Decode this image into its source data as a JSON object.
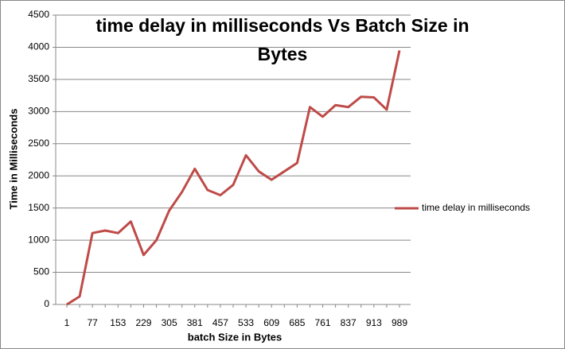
{
  "chart_data": {
    "type": "line",
    "title": "time delay in milliseconds Vs Batch Size in Bytes",
    "x_label": "batch Size in Bytes",
    "y_label": "Time in Milliseconds",
    "categories": [
      "1",
      null,
      "77",
      null,
      "153",
      null,
      "229",
      null,
      "305",
      null,
      "381",
      null,
      "457",
      null,
      "533",
      null,
      "609",
      null,
      "685",
      null,
      "761",
      null,
      "837",
      null,
      "913",
      null,
      "989"
    ],
    "series": [
      {
        "name": "time delay in milliseconds",
        "color": "#be4b48",
        "values": [
          0,
          125,
          1110,
          1150,
          1110,
          1290,
          770,
          1000,
          1460,
          1750,
          2110,
          1780,
          1700,
          1860,
          2320,
          2070,
          1940,
          2070,
          2200,
          3070,
          2920,
          3100,
          3070,
          3230,
          3220,
          3030,
          3950
        ]
      }
    ],
    "ylim": [
      0,
      4500
    ],
    "yticks": [
      0,
      500,
      1000,
      1500,
      2000,
      2500,
      3000,
      3500,
      4000,
      4500
    ],
    "grid": true,
    "legend": "right"
  }
}
